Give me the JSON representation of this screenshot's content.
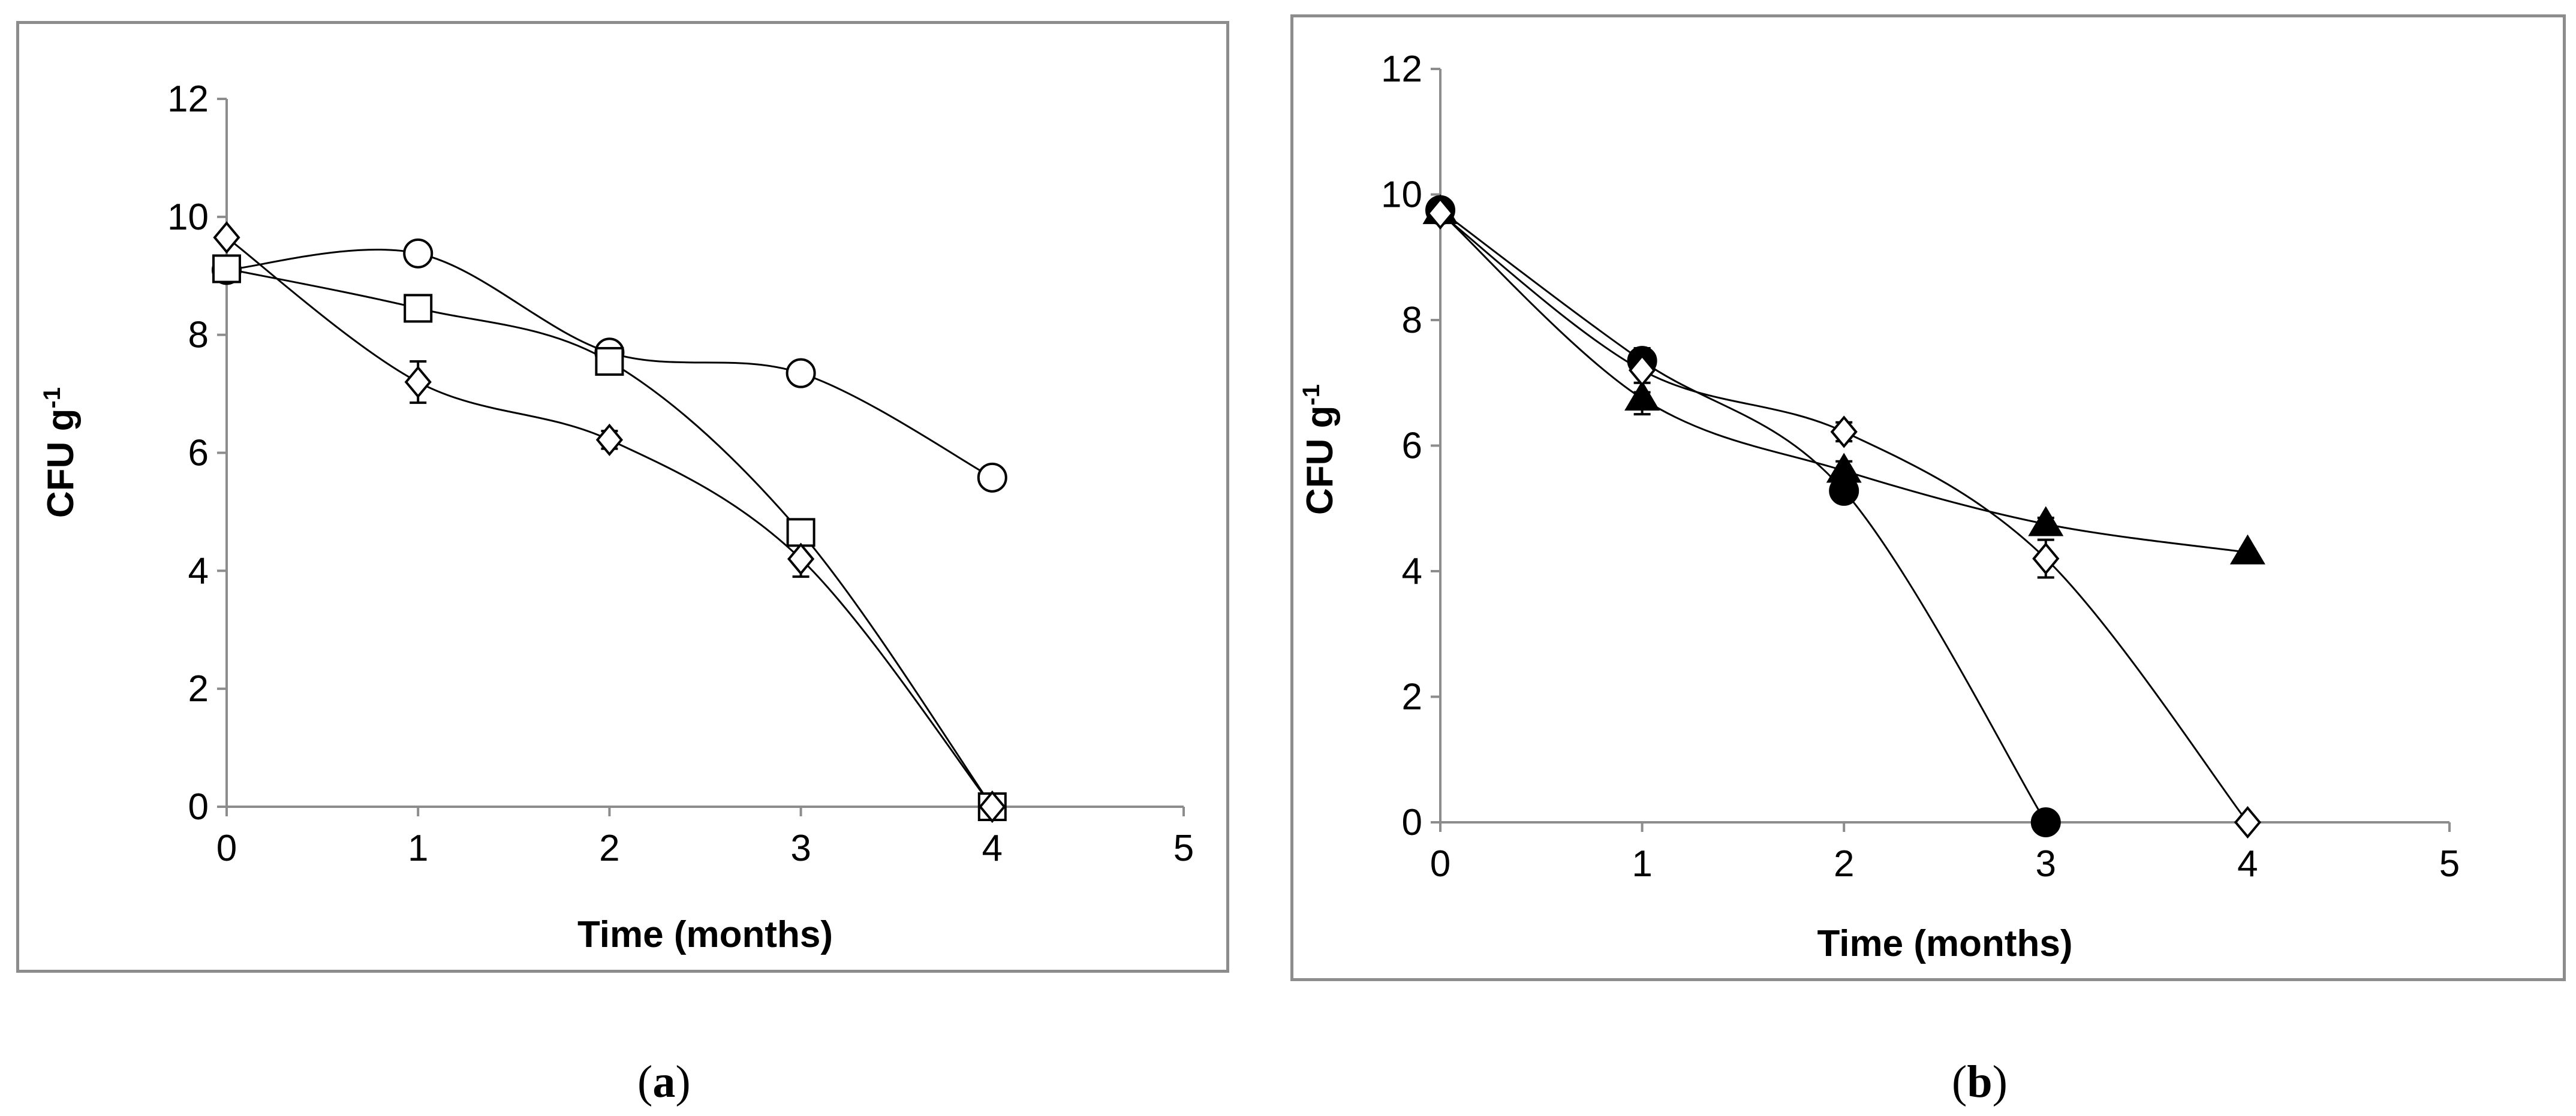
{
  "chart_data": [
    {
      "panel": "a",
      "type": "line",
      "xlabel": "Time (months)",
      "ylabel": "CFU g",
      "ylabel_sup": "-1",
      "xlim": [
        0,
        5
      ],
      "ylim": [
        0,
        12
      ],
      "xticks": [
        0,
        1,
        2,
        3,
        4,
        5
      ],
      "yticks": [
        0,
        2,
        4,
        6,
        8,
        10,
        12
      ],
      "grid": false,
      "series": [
        {
          "name": "circle-open",
          "marker": "circle",
          "filled": false,
          "x": [
            0,
            1,
            2,
            3,
            4
          ],
          "values": [
            9.1,
            9.38,
            7.7,
            7.35,
            5.58
          ],
          "errors": [
            0.1,
            0.1,
            0.1,
            0.08,
            0.05
          ]
        },
        {
          "name": "square-open",
          "marker": "square",
          "filled": false,
          "x": [
            0,
            1,
            2,
            3,
            4
          ],
          "values": [
            9.12,
            8.45,
            7.55,
            4.65,
            0
          ],
          "errors": [
            0.12,
            0.15,
            0.15,
            0.15,
            0
          ]
        },
        {
          "name": "diamond-open",
          "marker": "diamond",
          "filled": false,
          "x": [
            0,
            1,
            2,
            3,
            4
          ],
          "values": [
            9.65,
            7.2,
            6.22,
            4.2,
            0
          ],
          "errors": [
            0.05,
            0.35,
            0.15,
            0.3,
            0
          ]
        }
      ]
    },
    {
      "panel": "b",
      "type": "line",
      "xlabel": "Time (months)",
      "ylabel": "CFU g",
      "ylabel_sup": "-1",
      "xlim": [
        0,
        5
      ],
      "ylim": [
        0,
        12
      ],
      "xticks": [
        0,
        1,
        2,
        3,
        4,
        5
      ],
      "yticks": [
        0,
        2,
        4,
        6,
        8,
        10,
        12
      ],
      "grid": false,
      "series": [
        {
          "name": "circle-filled",
          "marker": "circle",
          "filled": true,
          "x": [
            0,
            1,
            2,
            3
          ],
          "values": [
            9.75,
            7.35,
            5.28,
            0
          ],
          "errors": [
            0.08,
            0.2,
            0.15,
            0
          ]
        },
        {
          "name": "triangle-filled",
          "marker": "triangle",
          "filled": true,
          "x": [
            0,
            1,
            2,
            3,
            4
          ],
          "values": [
            9.72,
            6.75,
            5.6,
            4.75,
            4.3
          ],
          "errors": [
            0.05,
            0.25,
            0.15,
            0.1,
            0.05
          ]
        },
        {
          "name": "diamond-open",
          "marker": "diamond",
          "filled": false,
          "x": [
            0,
            1,
            2,
            3,
            4
          ],
          "values": [
            9.7,
            7.2,
            6.22,
            4.2,
            0
          ],
          "errors": [
            0.05,
            0.35,
            0.15,
            0.3,
            0
          ]
        }
      ]
    }
  ],
  "captions": {
    "a": "a",
    "b": "b"
  }
}
